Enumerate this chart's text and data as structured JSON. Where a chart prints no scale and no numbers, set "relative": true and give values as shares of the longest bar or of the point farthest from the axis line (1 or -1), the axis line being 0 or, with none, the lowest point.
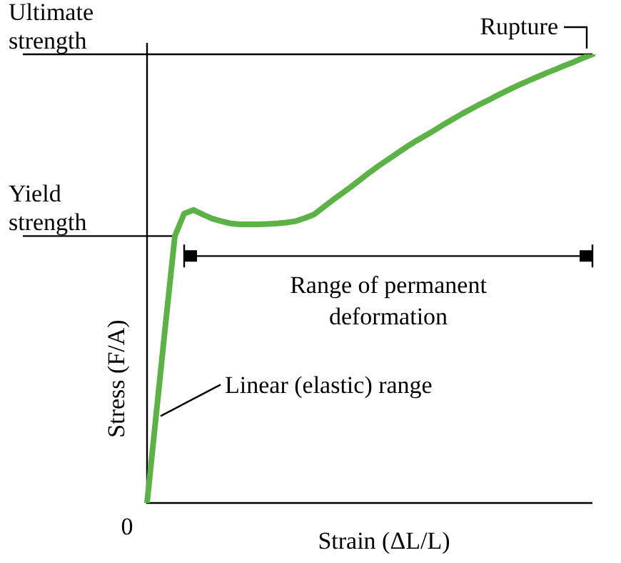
{
  "chart_data": {
    "type": "line",
    "relative": true,
    "xlabel": "Strain (ΔL/L)",
    "ylabel": "Stress (F/A)",
    "categories": [
      null,
      null,
      null,
      null,
      null,
      null,
      null,
      null,
      null,
      null,
      null,
      null,
      null,
      null,
      null,
      null,
      null,
      null,
      null,
      null,
      null,
      null,
      null,
      null,
      null,
      null,
      null,
      null,
      null,
      null,
      null,
      null,
      null,
      null,
      null,
      null,
      null,
      null,
      null,
      null,
      null,
      null,
      null,
      null,
      null,
      null,
      null,
      null,
      null
    ],
    "series": [
      {
        "color": "#5cb247",
        "values": [
          0,
          0.2,
          0.4,
          0.595,
          0.645,
          0.653,
          0.643,
          0.634,
          0.628,
          0.623,
          0.621,
          0.621,
          0.621,
          0.622,
          0.623,
          0.625,
          0.628,
          0.635,
          0.643,
          0.659,
          0.675,
          0.69,
          0.705,
          0.721,
          0.737,
          0.752,
          0.766,
          0.78,
          0.794,
          0.807,
          0.819,
          0.831,
          0.844,
          0.856,
          0.868,
          0.879,
          0.89,
          0.9,
          0.911,
          0.921,
          0.931,
          0.94,
          0.949,
          0.958,
          0.966,
          0.975,
          0.983,
          0.992,
          1
        ]
      }
    ],
    "ref_lines": [
      {
        "axis": "y",
        "value": 1,
        "label": "Ultimate strength"
      },
      {
        "axis": "y",
        "value": 0.595,
        "label": "Yield strength"
      }
    ],
    "annotations": [
      {
        "text": "Rupture",
        "y": 1
      },
      "Linear (elastic) range",
      "Range of permanent deformation",
      "0"
    ],
    "legend": false,
    "marker": "none",
    "line_style": "solid"
  }
}
